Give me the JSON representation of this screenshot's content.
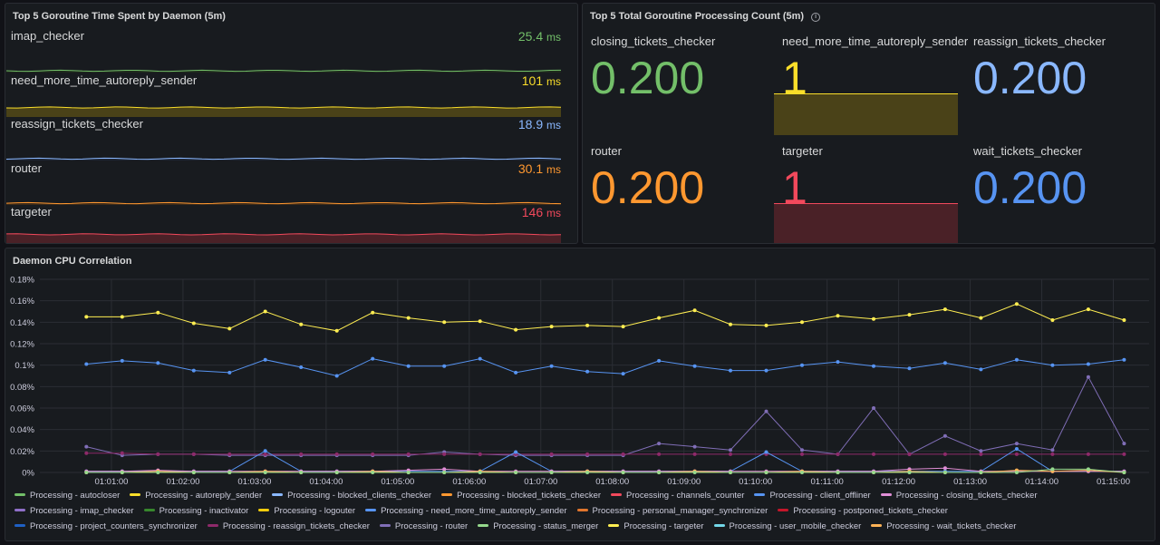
{
  "panel_goroutine_time": {
    "title": "Top 5 Goroutine Time Spent by Daemon (5m)",
    "rows": [
      {
        "label": "imap_checker",
        "value": "25.4",
        "unit": "ms",
        "color": "#73bf69",
        "fill": "#1f2a1d",
        "level": 0.04
      },
      {
        "label": "need_more_time_autoreply_sender",
        "value": "101",
        "unit": "ms",
        "color": "#fade2a",
        "fill": "#4a4218",
        "level": 0.35
      },
      {
        "label": "reassign_tickets_checker",
        "value": "18.9",
        "unit": "ms",
        "color": "#8ab8ff",
        "fill": "#1e2533",
        "level": 0.03
      },
      {
        "label": "router",
        "value": "30.1",
        "unit": "ms",
        "color": "#ff9830",
        "fill": "#3a2a1a",
        "level": 0.06
      },
      {
        "label": "targeter",
        "value": "146",
        "unit": "ms",
        "color": "#f2495c",
        "fill": "#4a2127",
        "level": 0.52
      }
    ]
  },
  "panel_processing_count": {
    "title": "Top 5 Total Goroutine Processing Count (5m)",
    "info_icon": "info-icon",
    "stats": [
      {
        "label": "closing_tickets_checker",
        "value": "0.200",
        "color": "#73bf69",
        "fill": ""
      },
      {
        "label": "need_more_time_autoreply_sender",
        "value": "1",
        "color": "#fade2a",
        "fill": "#4a4218"
      },
      {
        "label": "reassign_tickets_checker",
        "value": "0.200",
        "color": "#8ab8ff",
        "fill": ""
      },
      {
        "label": "router",
        "value": "0.200",
        "color": "#ff9830",
        "fill": ""
      },
      {
        "label": "targeter",
        "value": "1",
        "color": "#f2495c",
        "fill": "#4a2127"
      },
      {
        "label": "wait_tickets_checker",
        "value": "0.200",
        "color": "#5794f2",
        "fill": ""
      }
    ]
  },
  "panel_cpu": {
    "title": "Daemon CPU Correlation",
    "legend": [
      {
        "label": "Processing - autocloser",
        "color": "#73bf69"
      },
      {
        "label": "Processing - autoreply_sender",
        "color": "#fade2a"
      },
      {
        "label": "Processing - blocked_clients_checker",
        "color": "#8ab8ff"
      },
      {
        "label": "Processing - blocked_tickets_checker",
        "color": "#ff9830"
      },
      {
        "label": "Processing - channels_counter",
        "color": "#f2495c"
      },
      {
        "label": "Processing - client_offliner",
        "color": "#5794f2"
      },
      {
        "label": "Processing - closing_tickets_checker",
        "color": "#e08ed6"
      },
      {
        "label": "Processing - imap_checker",
        "color": "#8f6fc8"
      },
      {
        "label": "Processing - inactivator",
        "color": "#37872d"
      },
      {
        "label": "Processing - logouter",
        "color": "#f2cc0c"
      },
      {
        "label": "Processing - need_more_time_autoreply_sender",
        "color": "#5794f2"
      },
      {
        "label": "Processing - personal_manager_synchronizer",
        "color": "#e0752d"
      },
      {
        "label": "Processing - postponed_tickets_checker",
        "color": "#c4162a"
      },
      {
        "label": "Processing - project_counters_synchronizer",
        "color": "#1f60c4"
      },
      {
        "label": "Processing - reassign_tickets_checker",
        "color": "#8e2a6a"
      },
      {
        "label": "Processing - router",
        "color": "#806eb7"
      },
      {
        "label": "Processing - status_merger",
        "color": "#96d98d"
      },
      {
        "label": "Processing - targeter",
        "color": "#ffee52"
      },
      {
        "label": "Processing - user_mobile_checker",
        "color": "#73d7e8"
      },
      {
        "label": "Processing - wait_tickets_checker",
        "color": "#ffb357"
      }
    ]
  },
  "chart_data": {
    "type": "line",
    "title": "Daemon CPU Correlation",
    "xlabel": "",
    "ylabel": "",
    "y_ticks": [
      "0%",
      "0.02%",
      "0.04%",
      "0.06%",
      "0.08%",
      "0.1%",
      "0.12%",
      "0.14%",
      "0.16%",
      "0.18%"
    ],
    "ylim": [
      0,
      0.18
    ],
    "x_ticks": [
      "01:01:00",
      "01:02:00",
      "01:03:00",
      "01:04:00",
      "01:05:00",
      "01:06:00",
      "01:07:00",
      "01:08:00",
      "01:09:00",
      "01:10:00",
      "01:11:00",
      "01:12:00",
      "01:13:00",
      "01:14:00",
      "01:15:00"
    ],
    "x_start_minutes": 0.65,
    "x_step_minutes": 0.5,
    "grid": true,
    "legend_position": "bottom",
    "series": [
      {
        "name": "Processing - targeter",
        "color": "#ffee52",
        "values": [
          0.145,
          0.145,
          0.149,
          0.139,
          0.134,
          0.15,
          0.138,
          0.132,
          0.149,
          0.144,
          0.14,
          0.141,
          0.133,
          0.136,
          0.137,
          0.136,
          0.144,
          0.151,
          0.138,
          0.137,
          0.14,
          0.146,
          0.143,
          0.147,
          0.152,
          0.144,
          0.157,
          0.142,
          0.152,
          0.142
        ]
      },
      {
        "name": "Processing - need_more_time_autoreply_sender",
        "color": "#5794f2",
        "values": [
          0.101,
          0.104,
          0.102,
          0.095,
          0.093,
          0.105,
          0.098,
          0.09,
          0.106,
          0.099,
          0.099,
          0.106,
          0.093,
          0.099,
          0.094,
          0.092,
          0.104,
          0.099,
          0.095,
          0.095,
          0.1,
          0.103,
          0.099,
          0.097,
          0.102,
          0.096,
          0.105,
          0.1,
          0.101,
          0.105
        ]
      },
      {
        "name": "Processing - router",
        "color": "#806eb7",
        "values": [
          0.024,
          0.016,
          0.017,
          0.017,
          0.016,
          0.016,
          0.016,
          0.016,
          0.016,
          0.016,
          0.019,
          0.017,
          0.016,
          0.016,
          0.016,
          0.016,
          0.027,
          0.024,
          0.021,
          0.057,
          0.021,
          0.017,
          0.06,
          0.017,
          0.034,
          0.02,
          0.027,
          0.021,
          0.089,
          0.027
        ]
      },
      {
        "name": "Processing - reassign_tickets_checker",
        "color": "#8e2a6a",
        "values": [
          0.018,
          0.018,
          0.017,
          0.017,
          0.017,
          0.017,
          0.017,
          0.017,
          0.017,
          0.017,
          0.017,
          0.017,
          0.017,
          0.017,
          0.017,
          0.017,
          0.017,
          0.017,
          0.017,
          0.017,
          0.017,
          0.017,
          0.017,
          0.017,
          0.017,
          0.017,
          0.017,
          0.017,
          0.017,
          0.017
        ]
      },
      {
        "name": "Processing - client_offliner",
        "color": "#5794f2",
        "values": [
          0.001,
          0.001,
          0.001,
          0.001,
          0.001,
          0.02,
          0.001,
          0.001,
          0.001,
          0.001,
          0.001,
          0.001,
          0.019,
          0.001,
          0.001,
          0.001,
          0.001,
          0.001,
          0.001,
          0.019,
          0.001,
          0.001,
          0.001,
          0.001,
          0.001,
          0.001,
          0.022,
          0.001,
          0.001,
          0.001
        ]
      },
      {
        "name": "Processing - closing_tickets_checker",
        "color": "#e08ed6",
        "values": [
          0.001,
          0.001,
          0.002,
          0.001,
          0.001,
          0.001,
          0.001,
          0.001,
          0.001,
          0.002,
          0.003,
          0.001,
          0.001,
          0.001,
          0.001,
          0.001,
          0.001,
          0.001,
          0.001,
          0.001,
          0.001,
          0.001,
          0.001,
          0.003,
          0.004,
          0.001,
          0.001,
          0.001,
          0.001,
          0.001
        ]
      },
      {
        "name": "Processing - wait_tickets_checker",
        "color": "#ffb357",
        "values": [
          0.0,
          0.0,
          0.001,
          0.0,
          0.0,
          0.001,
          0.0,
          0.0,
          0.001,
          0.0,
          0.0,
          0.001,
          0.0,
          0.0,
          0.001,
          0.0,
          0.0,
          0.001,
          0.0,
          0.0,
          0.001,
          0.0,
          0.0,
          0.001,
          0.0,
          0.0,
          0.002,
          0.001,
          0.002,
          0.0
        ]
      },
      {
        "name": "Processing - status_merger",
        "color": "#96d98d",
        "values": [
          0.0,
          0.0,
          0.0,
          0.0,
          0.0,
          0.0,
          0.0,
          0.0,
          0.0,
          0.0,
          0.0,
          0.0,
          0.0,
          0.0,
          0.0,
          0.0,
          0.0,
          0.0,
          0.0,
          0.0,
          0.0,
          0.0,
          0.0,
          0.0,
          0.0,
          0.0,
          0.0,
          0.003,
          0.003,
          0.0
        ]
      }
    ]
  }
}
